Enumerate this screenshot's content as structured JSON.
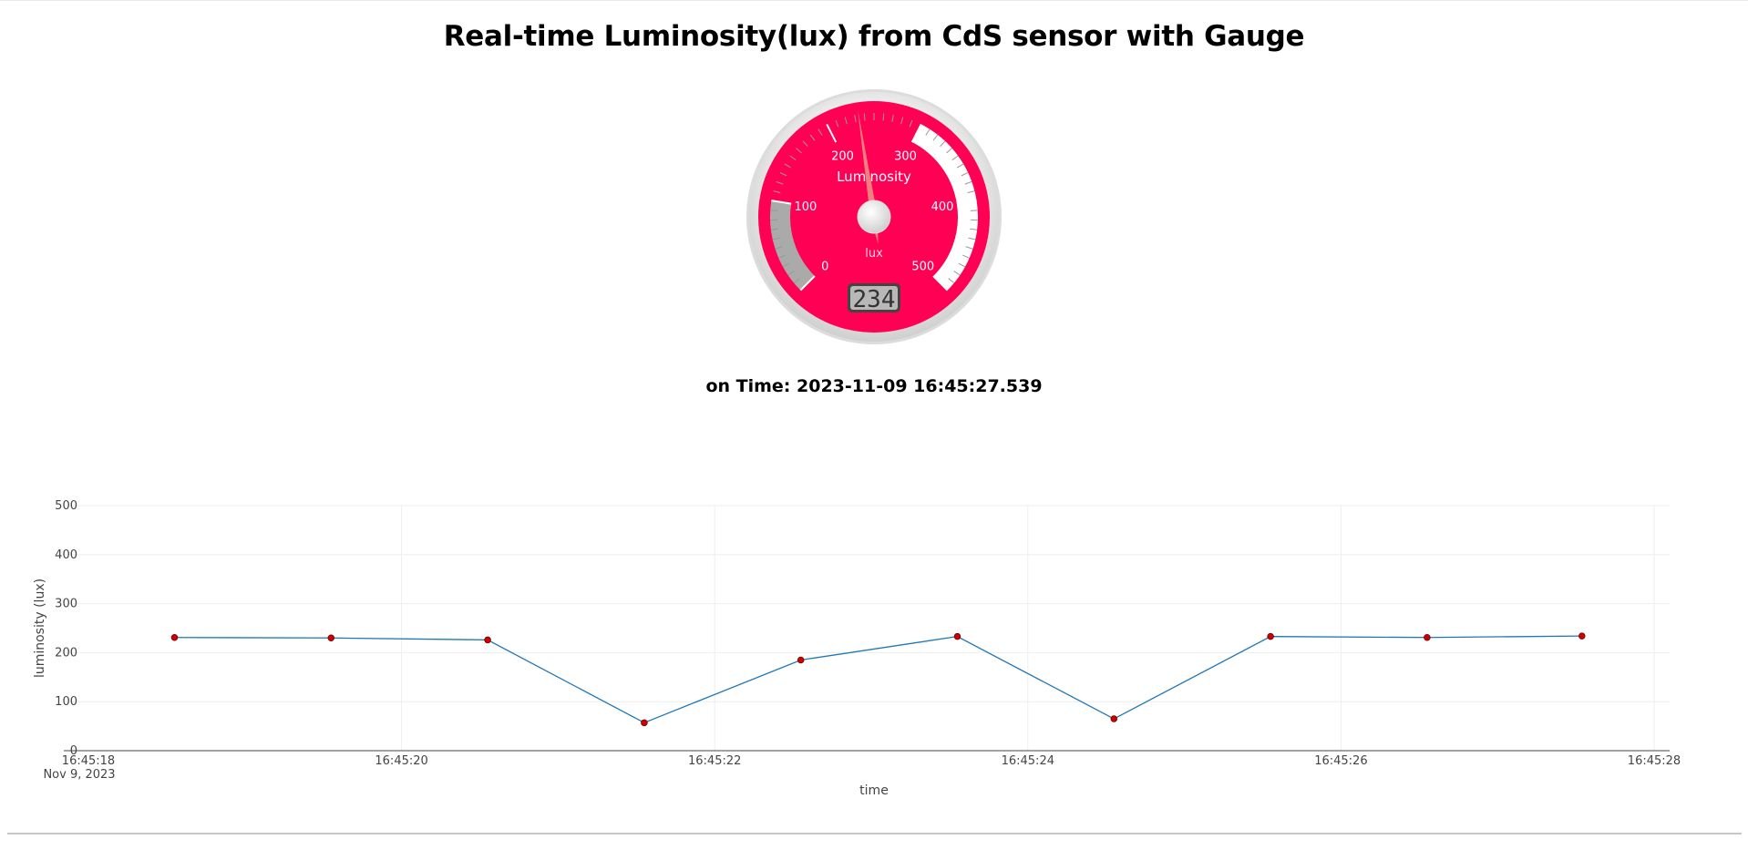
{
  "page": {
    "title": "Real-time Luminosity(lux) from CdS sensor with Gauge",
    "time_text": "on Time: 2023-11-09 16:45:27.539"
  },
  "gauge": {
    "label": "Luminosity",
    "units": "lux",
    "min": 0,
    "max": 500,
    "value": 234,
    "value_text": "234",
    "major_ticks": [
      "0",
      "100",
      "200",
      "300",
      "400",
      "500"
    ],
    "colors": {
      "plate": "#ff0055",
      "needle": "#f08080",
      "band_low": "#aaaaaa",
      "band_high": "#ffffff",
      "bezel": "#e6e6e6"
    }
  },
  "chart_data": {
    "type": "line",
    "title": "",
    "xlabel": "time",
    "ylabel": "luminosity (lux)",
    "ylim": [
      0,
      500
    ],
    "yticks": [
      "0",
      "100",
      "200",
      "300",
      "400",
      "500"
    ],
    "xlim": [
      "16:45:18",
      "16:45:28"
    ],
    "xticks": [
      {
        "label": "16:45:18",
        "sublabel": "Nov 9, 2023",
        "t": 0
      },
      {
        "label": "16:45:20",
        "sublabel": "",
        "t": 2
      },
      {
        "label": "16:45:22",
        "sublabel": "",
        "t": 4
      },
      {
        "label": "16:45:24",
        "sublabel": "",
        "t": 6
      },
      {
        "label": "16:45:26",
        "sublabel": "",
        "t": 8
      },
      {
        "label": "16:45:28",
        "sublabel": "",
        "t": 10
      }
    ],
    "grid": true,
    "line_color": "#1f77b4",
    "marker_color": "#cc0000",
    "series": [
      {
        "x": [
          "16:45:18.550",
          "16:45:19.550",
          "16:45:20.550",
          "16:45:21.550",
          "16:45:22.550",
          "16:45:23.550",
          "16:45:24.550",
          "16:45:25.550",
          "16:45:26.550",
          "16:45:27.539"
        ],
        "y": [
          231,
          230,
          226,
          57,
          185,
          233,
          65,
          233,
          231,
          234
        ]
      }
    ]
  }
}
